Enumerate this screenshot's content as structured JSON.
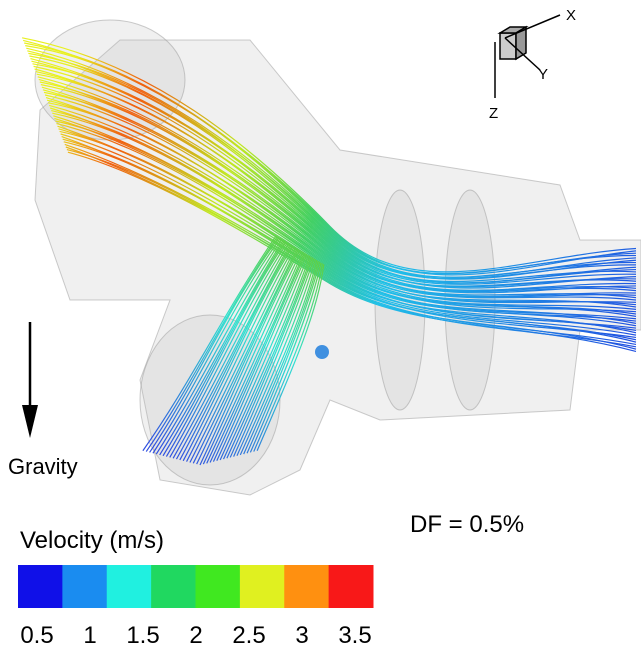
{
  "triad": {
    "x": "X",
    "y": "Y",
    "z": "Z"
  },
  "gravity_label": "Gravity",
  "annotation": "DF = 0.5%",
  "colorbar": {
    "title": "Velocity (m/s)",
    "ticks": [
      0.5,
      1,
      1.5,
      2,
      2.5,
      3,
      3.5
    ],
    "colors": [
      "#1010e8",
      "#1a8cf0",
      "#20f0e0",
      "#20d860",
      "#40e820",
      "#e0f020",
      "#ff9010",
      "#f81818"
    ]
  }
}
